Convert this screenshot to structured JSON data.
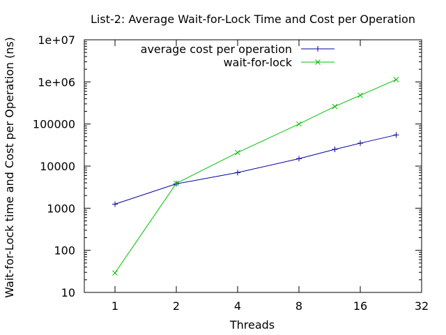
{
  "chart_data": {
    "type": "line",
    "title": "List-2: Average Wait-for-Lock Time and Cost per Operation",
    "xlabel": "Threads",
    "ylabel": "Wait-for-Lock time and Cost per Operation (ns)",
    "x_scale": "log2",
    "y_scale": "log10",
    "xlim": [
      0.707,
      32
    ],
    "ylim": [
      10,
      10000000
    ],
    "x_ticks": [
      {
        "value": 1,
        "label": "1"
      },
      {
        "value": 2,
        "label": "2"
      },
      {
        "value": 4,
        "label": "4"
      },
      {
        "value": 8,
        "label": "8"
      },
      {
        "value": 16,
        "label": "16"
      },
      {
        "value": 32,
        "label": "32"
      }
    ],
    "y_ticks": [
      {
        "value": 10,
        "label": "10"
      },
      {
        "value": 100,
        "label": "100"
      },
      {
        "value": 1000,
        "label": "1000"
      },
      {
        "value": 10000,
        "label": "10000"
      },
      {
        "value": 100000,
        "label": "100000"
      },
      {
        "value": 1000000,
        "label": "1e+06"
      },
      {
        "value": 10000000,
        "label": "1e+07"
      }
    ],
    "grid": false,
    "legend_position": "top-right",
    "series": [
      {
        "name": "average cost per operation",
        "color": "#0000a0",
        "marker": "plus",
        "x": [
          1,
          2,
          4,
          8,
          12,
          16,
          24
        ],
        "y": [
          1250,
          3800,
          7000,
          15000,
          25000,
          35000,
          55000
        ]
      },
      {
        "name": "wait-for-lock",
        "color": "#00c000",
        "marker": "cross",
        "x": [
          1,
          2,
          4,
          8,
          12,
          16,
          24
        ],
        "y": [
          29,
          3900,
          21000,
          100000,
          260000,
          480000,
          1130000
        ]
      }
    ]
  }
}
